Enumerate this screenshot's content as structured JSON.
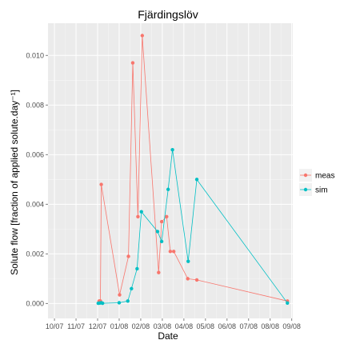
{
  "chart_data": {
    "type": "line",
    "title": "Fjärdingslöv",
    "xlabel": "Date",
    "ylabel": "Solute flow [fraction of applied solute.day⁻¹]",
    "x_tick_labels": [
      "10/07",
      "11/07",
      "12/07",
      "01/08",
      "02/08",
      "03/08",
      "04/08",
      "05/08",
      "06/08",
      "07/08",
      "08/08",
      "09/08"
    ],
    "xlim": [
      -0.3,
      11.05
    ],
    "ylim": [
      -0.0006,
      0.0113
    ],
    "y_ticks": [
      0.0,
      0.002,
      0.004,
      0.006,
      0.008,
      0.01
    ],
    "y_tick_labels": [
      "0.000",
      "0.002",
      "0.004",
      "0.006",
      "0.008",
      "0.010"
    ],
    "grid": true,
    "legend_position": "right",
    "series": [
      {
        "name": "meas",
        "color": "#F8766D",
        "x": [
          2.07,
          2.1,
          2.13,
          2.17,
          3.02,
          3.43,
          3.63,
          3.87,
          4.07,
          4.83,
          4.97,
          5.2,
          5.37,
          5.53,
          6.18,
          6.6,
          10.8
        ],
        "y": [
          0.0001,
          0.0001,
          0.0001,
          0.0048,
          0.00035,
          0.0019,
          0.0097,
          0.0035,
          0.0108,
          0.00125,
          0.0033,
          0.0035,
          0.0021,
          0.0021,
          0.001,
          0.00095,
          0.0001
        ]
      },
      {
        "name": "sim",
        "color": "#00BFC4",
        "x": [
          2.03,
          2.1,
          2.17,
          2.23,
          3.0,
          3.4,
          3.57,
          3.83,
          4.03,
          4.78,
          4.97,
          5.27,
          5.47,
          6.2,
          6.6,
          10.8
        ],
        "y": [
          1e-05,
          2e-05,
          3e-05,
          1e-05,
          3e-05,
          0.0001,
          0.0006,
          0.0014,
          0.0037,
          0.0029,
          0.0025,
          0.0046,
          0.0062,
          0.0017,
          0.005,
          2e-05
        ]
      }
    ]
  }
}
